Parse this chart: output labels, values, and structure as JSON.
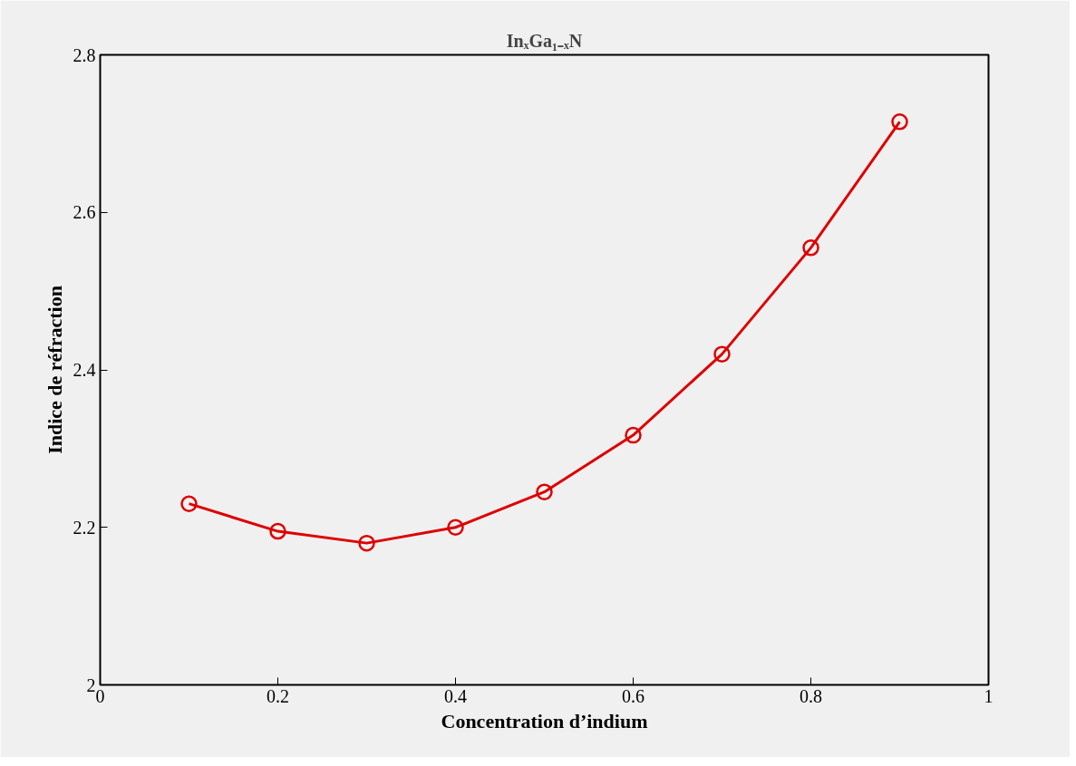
{
  "chart_data": {
    "type": "line",
    "title": "InₓGa₁₋ₓN",
    "xlabel": "Concentration d’indium",
    "ylabel": "Indice de réfraction",
    "x": [
      0.1,
      0.2,
      0.3,
      0.4,
      0.5,
      0.6,
      0.7,
      0.8,
      0.9
    ],
    "series": [
      {
        "color": "#dd0000",
        "values": [
          2.23,
          2.195,
          2.18,
          2.2,
          2.245,
          2.317,
          2.42,
          2.555,
          2.715
        ]
      }
    ],
    "xlim": [
      0,
      1
    ],
    "xticks": [
      0,
      0.2,
      0.4,
      0.6,
      0.8,
      1
    ],
    "ylim": [
      2,
      2.8
    ],
    "yticks": [
      2,
      2.2,
      2.4,
      2.6,
      2.8
    ],
    "grid": false,
    "marker": "circle",
    "line_style": "solid"
  }
}
